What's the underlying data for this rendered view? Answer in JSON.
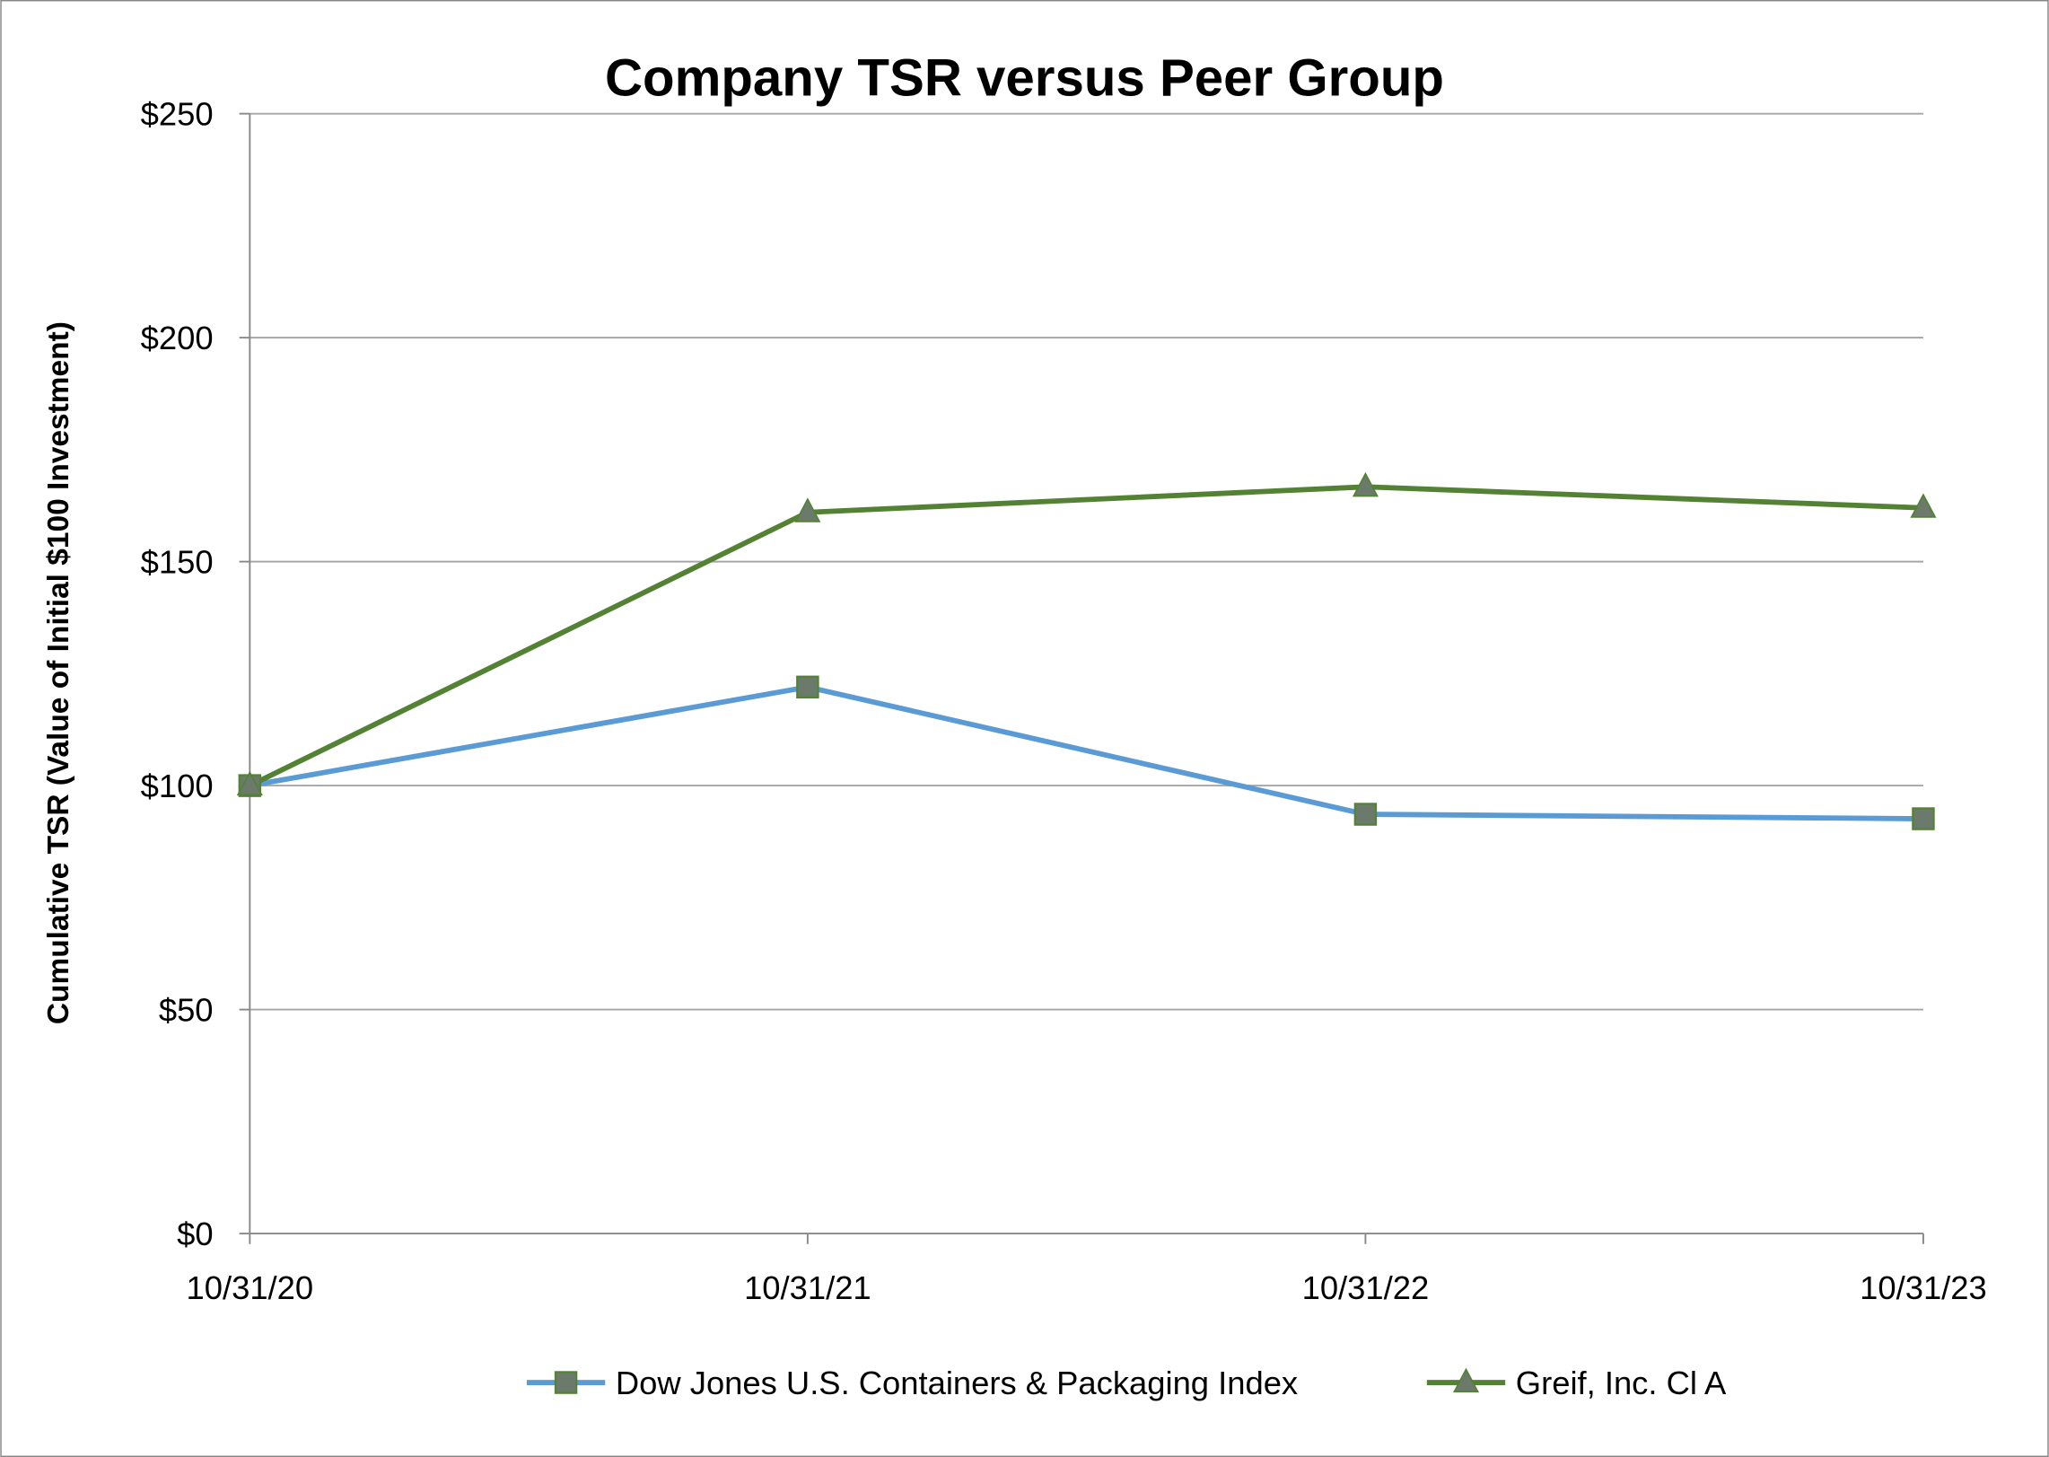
{
  "chart_data": {
    "type": "line",
    "title": "Company TSR versus Peer Group",
    "xlabel": "",
    "ylabel": "Cumulative TSR (Value of Initial $100 Investment)",
    "categories": [
      "10/31/20",
      "10/31/21",
      "10/31/22",
      "10/31/23"
    ],
    "ylim": [
      0,
      250
    ],
    "yticks": [
      0,
      50,
      100,
      150,
      200,
      250
    ],
    "ytick_labels": [
      "$0",
      "$50",
      "$100",
      "$150",
      "$200",
      "$250"
    ],
    "grid": true,
    "legend": "bottom",
    "series": [
      {
        "name": "Dow Jones U.S. Containers & Packaging Index",
        "values": [
          100,
          122,
          93.6,
          92.6
        ],
        "color": "#5B9BD5",
        "marker": "square"
      },
      {
        "name": "Greif, Inc. Cl A",
        "values": [
          100,
          161,
          166.7,
          162
        ],
        "color": "#548235",
        "marker": "triangle"
      }
    ],
    "marker_fill": "#6B7A6B"
  }
}
